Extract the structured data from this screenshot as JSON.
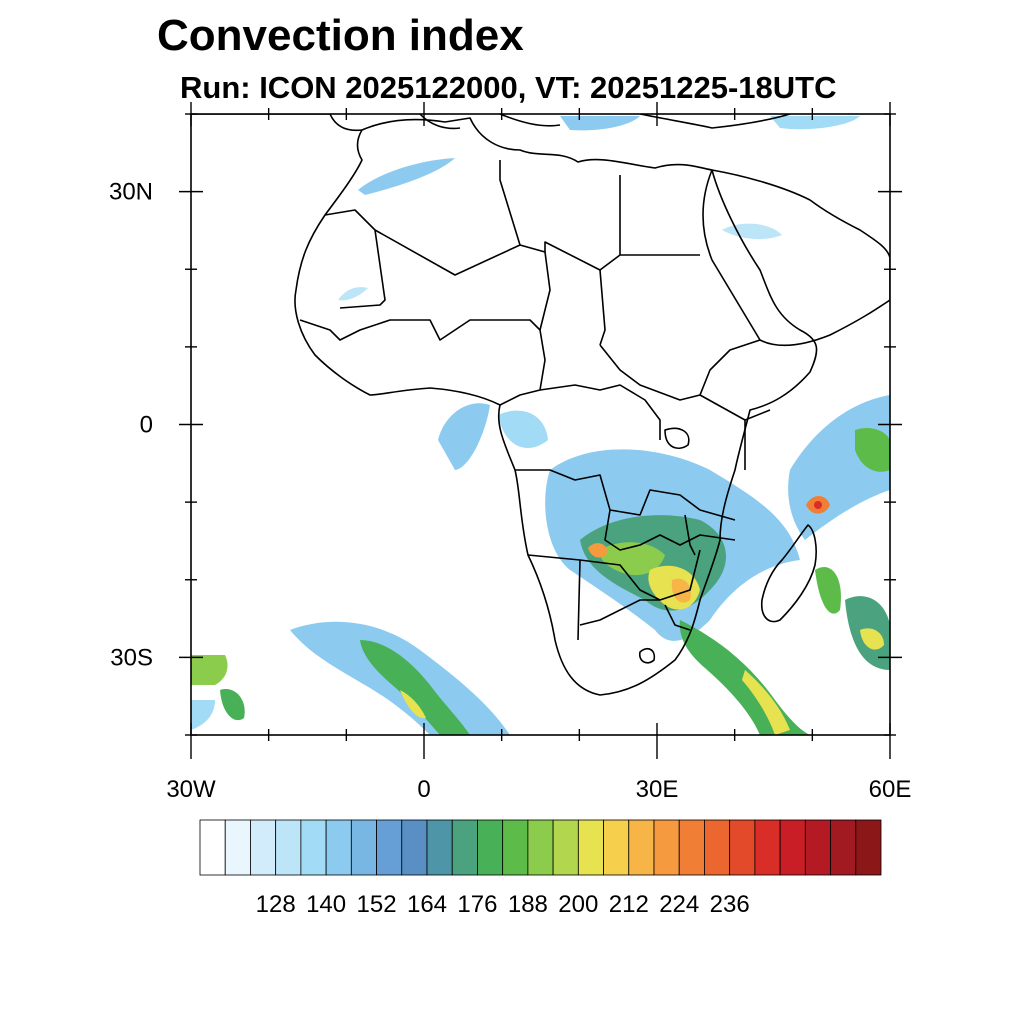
{
  "header": {
    "title": "Convection index",
    "subtitle": "Run: ICON 2025122000,  VT: 20251225-18UTC"
  },
  "map": {
    "region": "Africa",
    "lon_range": [
      -30,
      60
    ],
    "lat_range": [
      -40,
      40
    ],
    "lat_ticks": [
      {
        "value": 30,
        "label": "30N"
      },
      {
        "value": 0,
        "label": "0"
      },
      {
        "value": -30,
        "label": "30S"
      }
    ],
    "lon_ticks": [
      {
        "value": -30,
        "label": "30W"
      },
      {
        "value": 0,
        "label": "0"
      },
      {
        "value": 30,
        "label": "30E"
      },
      {
        "value": 60,
        "label": "60E"
      }
    ],
    "minor_lat_ticks": [
      40,
      20,
      10,
      -10,
      -20,
      -40
    ],
    "minor_lon_ticks": [
      -20,
      -10,
      10,
      20,
      40,
      50
    ]
  },
  "colorbar": {
    "colors": [
      "#ffffff",
      "#eaf6fd",
      "#d2ecfb",
      "#bde5f8",
      "#a2dbf5",
      "#8ccbef",
      "#78b7e4",
      "#659fd6",
      "#5a8fc6",
      "#4f95a8",
      "#4aa37e",
      "#48b158",
      "#5dbb4a",
      "#8ccc4d",
      "#b2d64e",
      "#e6e250",
      "#f6cf4c",
      "#f7b548",
      "#f59a3f",
      "#f07f35",
      "#ec672f",
      "#e24a2a",
      "#d92d28",
      "#c91e26",
      "#b31a24",
      "#a11a22",
      "#8c1718"
    ],
    "labels": [
      "128",
      "140",
      "152",
      "164",
      "176",
      "188",
      "200",
      "212",
      "224",
      "236"
    ]
  }
}
